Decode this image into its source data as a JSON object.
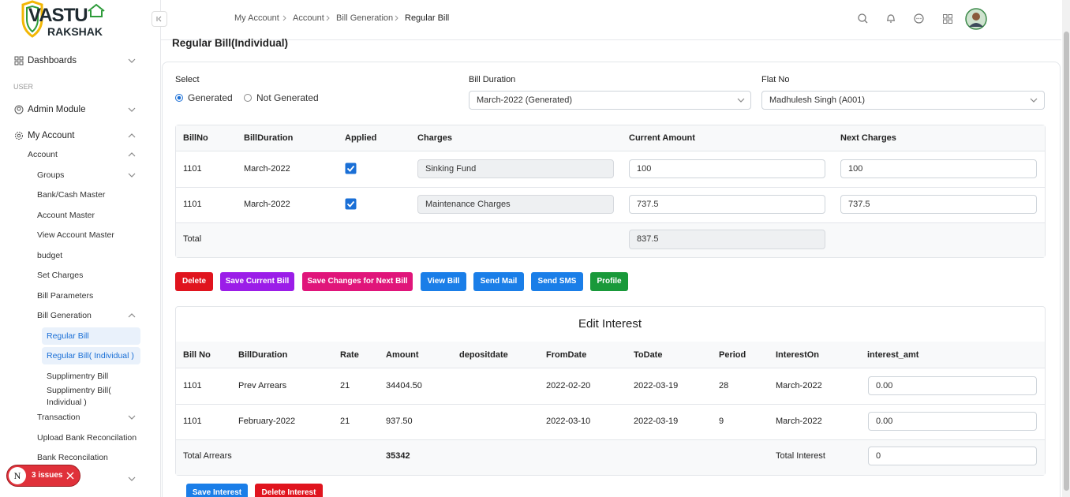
{
  "logo": {
    "line1": "VASTU",
    "line2": "RAKSHAK"
  },
  "breadcrumb": [
    "My Account",
    "Account",
    "Bill Generation",
    "Regular Bill"
  ],
  "sidebar": {
    "items": [
      "Dashboards",
      "USER",
      "Admin Module",
      "My Account",
      "Account",
      "Groups",
      "Bank/Cash Master",
      "Account Master",
      "View Account Master",
      "budget",
      "Set Charges",
      "Bill Parameters",
      "Bill Generation",
      "Regular Bill",
      "Regular Bill( Individual )",
      "Supplimentry Bill",
      "Supplimentry Bill( Individual )",
      "Transaction",
      "Upload Bank Reconcilation",
      "Bank Reconcilation"
    ]
  },
  "page_title": "Regular Bill(Individual)",
  "filters": {
    "select_label": "Select",
    "options": [
      "Generated",
      "Not Generated"
    ],
    "selected": 0,
    "bill_duration_label": "Bill Duration",
    "bill_duration_value": "March-2022 (Generated)",
    "flat_label": "Flat No",
    "flat_value": "Madhulesh Singh (A001)"
  },
  "charges_table": {
    "headers": [
      "BillNo",
      "BillDuration",
      "Applied",
      "Charges",
      "Current Amount",
      "Next Charges"
    ],
    "rows": [
      [
        "1101",
        "March-2022",
        true,
        "Sinking Fund",
        "100",
        "100"
      ],
      [
        "1101",
        "March-2022",
        true,
        "Maintenance Charges",
        "737.5",
        "737.5"
      ]
    ],
    "total_label": "Total",
    "total_value": "837.5"
  },
  "actions": [
    "Delete",
    "Save Current Bill",
    "Save Changes for Next Bill",
    "View Bill",
    "Send Mail",
    "Send SMS",
    "Profile"
  ],
  "interest": {
    "title": "Edit Interest",
    "headers": [
      "Bill No",
      "BillDuration",
      "Rate",
      "Amount",
      "depositdate",
      "FromDate",
      "ToDate",
      "Period",
      "InterestOn",
      "interest_amt"
    ],
    "rows": [
      [
        "1101",
        "Prev Arrears",
        "21",
        "34404.50",
        null,
        "2022-02-20",
        "2022-03-19",
        "28",
        "March-2022",
        "0.00"
      ],
      [
        "1101",
        "February-2022",
        "21",
        "937.50",
        null,
        "2022-03-10",
        "2022-03-19",
        "9",
        "March-2022",
        "0.00"
      ]
    ],
    "total_arrears_label": "Total Arrears",
    "total_arrears": "35342",
    "total_interest_label": "Total Interest",
    "total_interest": "0",
    "actions": [
      "Save Interest",
      "Delete Interest"
    ]
  },
  "issues": {
    "initial": "N",
    "label": "3 issues"
  }
}
